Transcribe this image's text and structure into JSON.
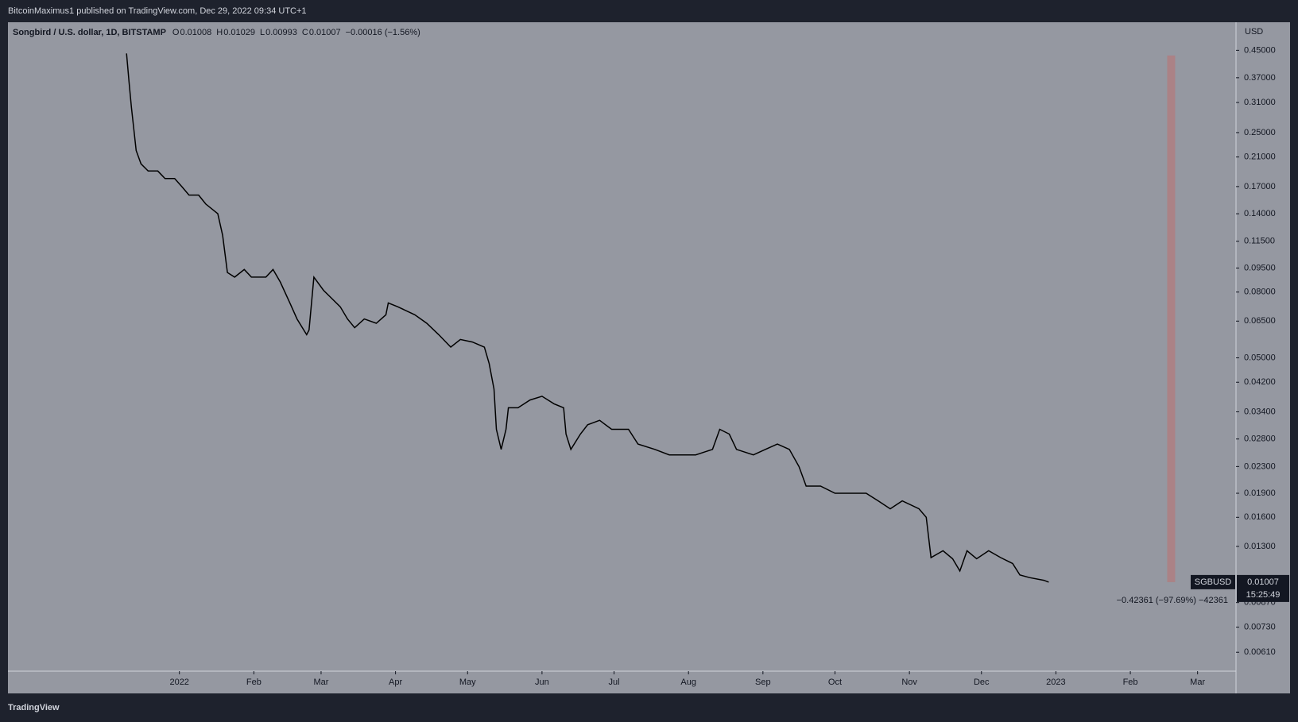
{
  "header": {
    "publisher": "BitcoinMaximus1 published on TradingView.com, Dec 29, 2022 09:34 UTC+1"
  },
  "footer": {
    "brand": "TradingView"
  },
  "chart_data": {
    "type": "line",
    "title": "Songbird / U.S. dollar, 1D, BITSTAMP",
    "ohlc": [
      {
        "label": "O",
        "value": 0.01008
      },
      {
        "label": "H",
        "value": 0.01029
      },
      {
        "label": "L",
        "value": 0.00993
      },
      {
        "label": "C",
        "value": 0.01007
      }
    ],
    "change": "−0.00016 (−1.56%)",
    "y_axis_label": "USD",
    "symbol": "SGBUSD",
    "countdown": "15:25:49",
    "log_scale": true,
    "xlim": [
      -71.4,
      440
    ],
    "ylim": [
      0.00533,
      0.55
    ],
    "xticks": [
      {
        "value": 0,
        "label": "2022"
      },
      {
        "value": 31,
        "label": "Feb"
      },
      {
        "value": 59,
        "label": "Mar"
      },
      {
        "value": 90,
        "label": "Apr"
      },
      {
        "value": 120,
        "label": "May"
      },
      {
        "value": 151,
        "label": "Jun"
      },
      {
        "value": 181,
        "label": "Jul"
      },
      {
        "value": 212,
        "label": "Aug"
      },
      {
        "value": 243,
        "label": "Sep"
      },
      {
        "value": 273,
        "label": "Oct"
      },
      {
        "value": 304,
        "label": "Nov"
      },
      {
        "value": 334,
        "label": "Dec"
      },
      {
        "value": 365,
        "label": "2023"
      },
      {
        "value": 396,
        "label": "Feb"
      },
      {
        "value": 424,
        "label": "Mar"
      }
    ],
    "yticks": [
      {
        "value": 0.45,
        "label": "0.45000"
      },
      {
        "value": 0.37,
        "label": "0.37000"
      },
      {
        "value": 0.31,
        "label": "0.31000"
      },
      {
        "value": 0.25,
        "label": "0.25000"
      },
      {
        "value": 0.21,
        "label": "0.21000"
      },
      {
        "value": 0.17,
        "label": "0.17000"
      },
      {
        "value": 0.14,
        "label": "0.14000"
      },
      {
        "value": 0.115,
        "label": "0.11500"
      },
      {
        "value": 0.095,
        "label": "0.09500"
      },
      {
        "value": 0.08,
        "label": "0.08000"
      },
      {
        "value": 0.065,
        "label": "0.06500"
      },
      {
        "value": 0.05,
        "label": "0.05000"
      },
      {
        "value": 0.042,
        "label": "0.04200"
      },
      {
        "value": 0.034,
        "label": "0.03400"
      },
      {
        "value": 0.028,
        "label": "0.02800"
      },
      {
        "value": 0.023,
        "label": "0.02300"
      },
      {
        "value": 0.019,
        "label": "0.01900"
      },
      {
        "value": 0.016,
        "label": "0.01600"
      },
      {
        "value": 0.013,
        "label": "0.01300"
      },
      {
        "value": 0.0087,
        "label": "0.00870"
      },
      {
        "value": 0.0073,
        "label": "0.00730"
      },
      {
        "value": 0.0061,
        "label": "0.00610"
      }
    ],
    "x": [
      -22,
      -21,
      -20,
      -18,
      -16,
      -13,
      -9,
      -6,
      -2,
      1,
      4,
      8,
      11,
      16,
      18,
      20,
      23,
      27,
      30,
      36,
      39,
      42,
      46,
      49,
      53,
      54,
      56,
      60,
      63,
      67,
      70,
      73,
      77,
      82,
      86,
      87,
      91,
      98,
      103,
      108,
      113,
      117,
      122,
      127,
      129,
      131,
      132,
      134,
      136,
      137,
      141,
      146,
      151,
      156,
      160,
      161,
      163,
      167,
      170,
      175,
      180,
      187,
      191,
      198,
      204,
      208,
      215,
      222,
      225,
      229,
      232,
      239,
      244,
      249,
      254,
      258,
      261,
      267,
      273,
      280,
      286,
      291,
      296,
      301,
      308,
      311,
      313,
      318,
      322,
      325,
      328,
      332,
      337,
      342,
      347,
      350,
      354,
      360,
      362
    ],
    "series": [
      {
        "name": "SGBUSD",
        "color": "#000000",
        "values": [
          0.44,
          0.36,
          0.3,
          0.22,
          0.2,
          0.19,
          0.19,
          0.18,
          0.18,
          0.17,
          0.16,
          0.16,
          0.15,
          0.14,
          0.12,
          0.092,
          0.089,
          0.094,
          0.089,
          0.089,
          0.094,
          0.086,
          0.074,
          0.066,
          0.059,
          0.061,
          0.089,
          0.081,
          0.077,
          0.072,
          0.066,
          0.062,
          0.066,
          0.064,
          0.068,
          0.074,
          0.072,
          0.068,
          0.064,
          0.059,
          0.054,
          0.057,
          0.056,
          0.054,
          0.048,
          0.04,
          0.03,
          0.026,
          0.03,
          0.035,
          0.035,
          0.037,
          0.038,
          0.036,
          0.035,
          0.029,
          0.026,
          0.029,
          0.031,
          0.032,
          0.03,
          0.03,
          0.027,
          0.026,
          0.025,
          0.025,
          0.025,
          0.026,
          0.03,
          0.029,
          0.026,
          0.025,
          0.026,
          0.027,
          0.026,
          0.023,
          0.02,
          0.02,
          0.019,
          0.019,
          0.019,
          0.018,
          0.017,
          0.018,
          0.017,
          0.016,
          0.012,
          0.0126,
          0.0119,
          0.0109,
          0.0126,
          0.0119,
          0.0126,
          0.012,
          0.0115,
          0.0106,
          0.0104,
          0.0102,
          0.01007
        ]
      }
    ],
    "measure": {
      "x": 413,
      "start": 0.43368,
      "end": 0.01007,
      "label": "−0.42361 (−97.69%) −42361",
      "color": "#b07d7f"
    },
    "background": "#9598a1"
  }
}
